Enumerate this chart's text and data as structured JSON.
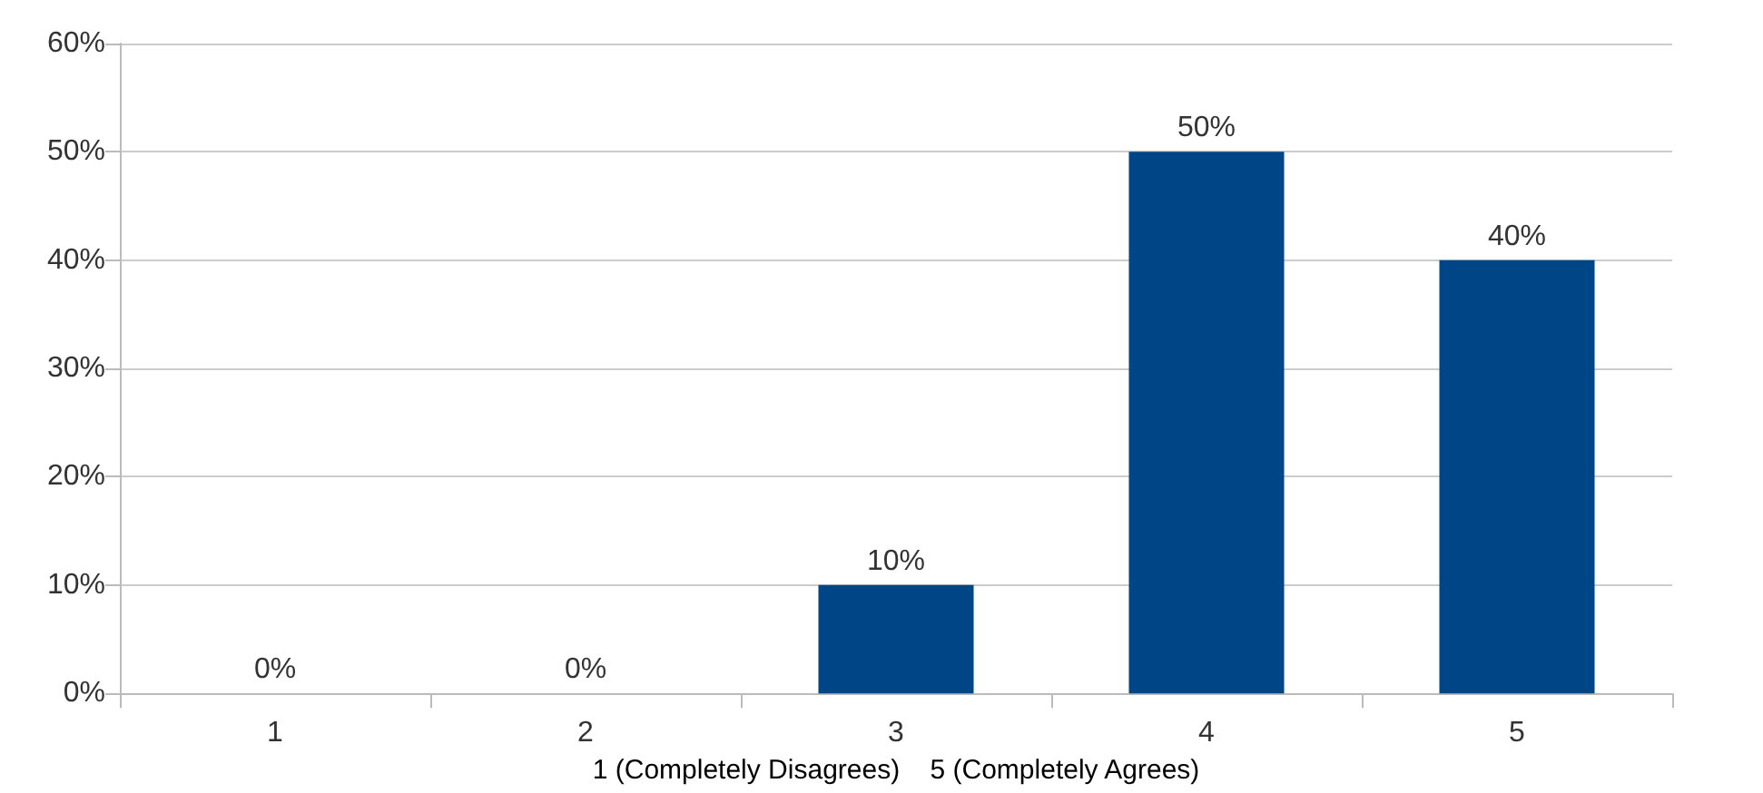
{
  "chart_data": {
    "type": "bar",
    "xlabel": "1 (Completely Disagrees)    5 (Completely Agrees)",
    "categories": [
      "1",
      "2",
      "3",
      "4",
      "5"
    ],
    "values": [
      0,
      0,
      10,
      50,
      40
    ],
    "value_labels": [
      "0%",
      "0%",
      "10%",
      "50%",
      "40%"
    ],
    "color": "#004586",
    "ylim": [
      0,
      60
    ],
    "yticks": [
      {
        "value": 0,
        "label": "0%"
      },
      {
        "value": 10,
        "label": "10%"
      },
      {
        "value": 20,
        "label": "20%"
      },
      {
        "value": 30,
        "label": "30%"
      },
      {
        "value": 40,
        "label": "40%"
      },
      {
        "value": 50,
        "label": "50%"
      },
      {
        "value": 60,
        "label": "60%"
      }
    ],
    "grid": "y"
  }
}
